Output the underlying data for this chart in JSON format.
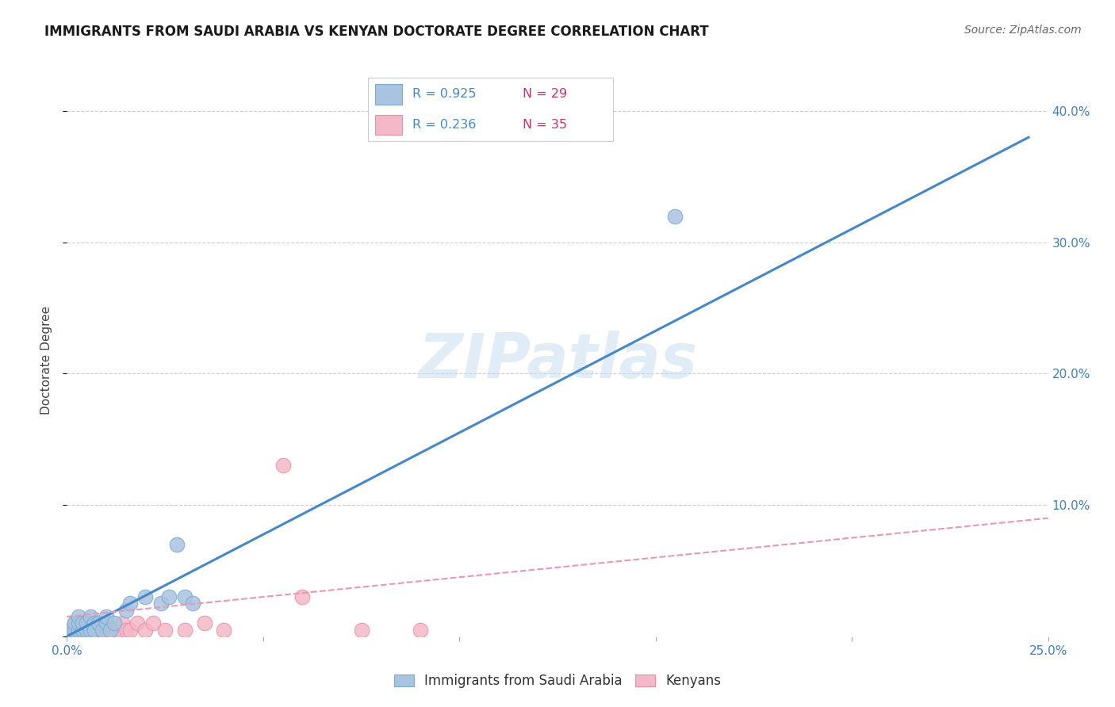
{
  "title": "IMMIGRANTS FROM SAUDI ARABIA VS KENYAN DOCTORATE DEGREE CORRELATION CHART",
  "source": "Source: ZipAtlas.com",
  "ylabel": "Doctorate Degree",
  "xlim": [
    0.0,
    0.25
  ],
  "ylim": [
    0.0,
    0.42
  ],
  "yticks": [
    0.0,
    0.1,
    0.2,
    0.3,
    0.4
  ],
  "ytick_labels": [
    "",
    "10.0%",
    "20.0%",
    "30.0%",
    "40.0%"
  ],
  "xticks": [
    0.0,
    0.05,
    0.1,
    0.15,
    0.2,
    0.25
  ],
  "xtick_labels": [
    "0.0%",
    "",
    "",
    "",
    "",
    "25.0%"
  ],
  "grid_color": "#cccccc",
  "background_color": "#ffffff",
  "watermark": "ZIPatlas",
  "saudi_color": "#a8c4e0",
  "saudi_edge": "#7aaad0",
  "kenyan_color": "#f4b8c8",
  "kenyan_edge": "#e890a8",
  "saudi_x": [
    0.001,
    0.002,
    0.002,
    0.003,
    0.003,
    0.003,
    0.004,
    0.004,
    0.005,
    0.005,
    0.006,
    0.006,
    0.007,
    0.007,
    0.008,
    0.009,
    0.01,
    0.01,
    0.011,
    0.012,
    0.015,
    0.016,
    0.02,
    0.024,
    0.026,
    0.028,
    0.03,
    0.032,
    0.155
  ],
  "saudi_y": [
    0.005,
    0.005,
    0.01,
    0.005,
    0.01,
    0.015,
    0.005,
    0.01,
    0.005,
    0.01,
    0.005,
    0.015,
    0.01,
    0.005,
    0.01,
    0.005,
    0.01,
    0.015,
    0.005,
    0.01,
    0.02,
    0.025,
    0.03,
    0.025,
    0.03,
    0.07,
    0.03,
    0.025,
    0.32
  ],
  "kenyan_x": [
    0.001,
    0.002,
    0.002,
    0.003,
    0.003,
    0.004,
    0.004,
    0.005,
    0.005,
    0.006,
    0.006,
    0.007,
    0.007,
    0.008,
    0.008,
    0.009,
    0.01,
    0.01,
    0.011,
    0.012,
    0.013,
    0.014,
    0.015,
    0.016,
    0.018,
    0.02,
    0.022,
    0.025,
    0.03,
    0.035,
    0.04,
    0.055,
    0.06,
    0.075,
    0.09
  ],
  "kenyan_y": [
    0.005,
    0.005,
    0.01,
    0.005,
    0.01,
    0.005,
    0.01,
    0.005,
    0.01,
    0.005,
    0.01,
    0.005,
    0.01,
    0.005,
    0.01,
    0.005,
    0.005,
    0.01,
    0.005,
    0.005,
    0.005,
    0.01,
    0.005,
    0.005,
    0.01,
    0.005,
    0.01,
    0.005,
    0.005,
    0.01,
    0.005,
    0.13,
    0.03,
    0.005,
    0.005
  ],
  "blue_line": {
    "x0": 0.0,
    "y0": 0.0,
    "x1": 0.245,
    "y1": 0.38,
    "color": "#4488cc",
    "lw": 2.2,
    "ls": "-"
  },
  "pink_line": {
    "x0": 0.0,
    "y0": 0.015,
    "x1": 0.25,
    "y1": 0.09,
    "color": "#e898b0",
    "lw": 1.5,
    "ls": "--"
  },
  "legend_R_color": "#4488cc",
  "legend_N_color": "#cc3366",
  "title_fontsize": 12,
  "tick_fontsize": 11,
  "source_fontsize": 10,
  "axis_label_fontsize": 11
}
